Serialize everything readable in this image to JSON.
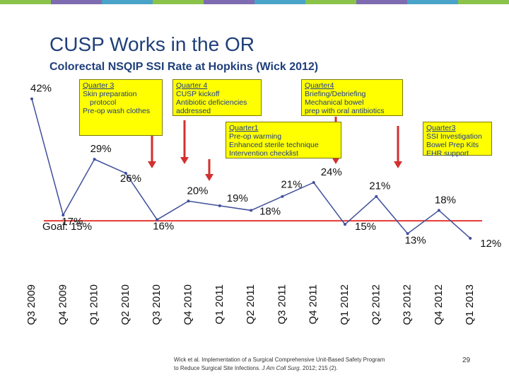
{
  "slide": {
    "title": "CUSP Works in the OR",
    "subtitle": "Colorectal NSQIP SSI Rate at Hopkins (Wick 2012)",
    "page_number": "29",
    "bar_colors": [
      "#8bc34a",
      "#7e6bb0",
      "#4aa3c8",
      "#8bc34a",
      "#7e6bb0",
      "#4aa3c8",
      "#8bc34a",
      "#7e6bb0",
      "#4aa3c8",
      "#8bc34a"
    ]
  },
  "citation": {
    "line1": "Wick et al. Implementation of a Surgical Comprehensive Unit-Based Safety Program",
    "line2_prefix": "to Reduce Surgical Site Infections. ",
    "journal": "J Am Coll Surg",
    "line2_suffix": ". 2012; 215 (2)."
  },
  "callouts": [
    {
      "head": "Quarter 3",
      "lines": [
        "Skin preparation",
        "protocol",
        "Pre-op wash clothes"
      ]
    },
    {
      "head": "Quarter 4",
      "lines": [
        "CUSP kickoff",
        "Antibiotic deficiencies",
        "addressed"
      ]
    },
    {
      "head": "Quarter1",
      "lines": [
        "Pre-op warming",
        "Enhanced sterile technique",
        "Intervention checklist"
      ]
    },
    {
      "head": "Quarter4",
      "lines": [
        "Briefing/Debriefing",
        "Mechanical bowel",
        "prep with oral antibiotics"
      ]
    },
    {
      "head": "Quarter3",
      "lines": [
        "SSI Investigation",
        "Bowel Prep Kits",
        "EHR support"
      ]
    }
  ],
  "chart_data": {
    "type": "line",
    "title": "",
    "xlabel": "",
    "ylabel": "",
    "categories": [
      "Q3 2009",
      "Q4 2009",
      "Q1 2010",
      "Q2 2010",
      "Q3 2010",
      "Q4 2010",
      "Q1 2011",
      "Q2 2011",
      "Q3 2011",
      "Q4 2011",
      "Q1 2012",
      "Q2 2012",
      "Q3 2012",
      "Q4 2012",
      "Q1 2013"
    ],
    "series": [
      {
        "values": [
          42,
          17,
          29,
          26,
          16,
          20,
          19,
          18,
          21,
          24,
          15,
          21,
          13,
          18,
          12
        ],
        "labels": [
          "42%",
          "17%",
          "29%",
          "26%",
          "16%",
          "20%",
          "19%",
          "18%",
          "21%",
          "24%",
          "15%",
          "21%",
          "13%",
          "18%",
          "12%"
        ],
        "color": "#3f4f9a"
      }
    ],
    "goal": {
      "value": 15,
      "label": "Goal: 15%",
      "color": "#e53935"
    },
    "arrow_color": "#d32f2f",
    "ylim": [
      10,
      45
    ],
    "grid": false,
    "legend": "none"
  }
}
